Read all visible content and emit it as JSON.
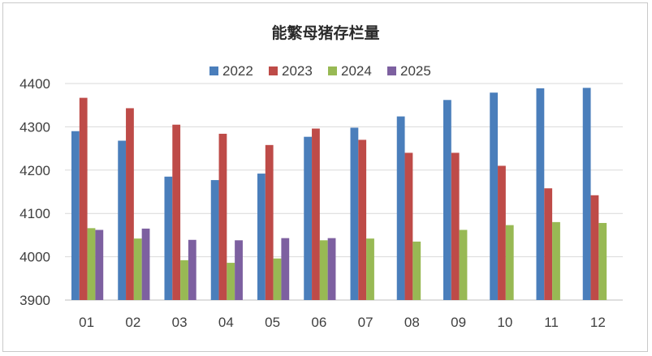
{
  "chart_data": {
    "type": "bar",
    "title": "能繁母猪存栏量",
    "xlabel": "",
    "ylabel": "",
    "categories": [
      "01",
      "02",
      "03",
      "04",
      "05",
      "06",
      "07",
      "08",
      "09",
      "10",
      "11",
      "12"
    ],
    "ylim": [
      3900,
      4400
    ],
    "yticks": [
      "3900",
      "4000",
      "4100",
      "4200",
      "4300",
      "4400"
    ],
    "grid": "horizontal",
    "legend_position": "top",
    "series": [
      {
        "name": "2022",
        "color": "#4a7ebb",
        "values": [
          4290,
          4268,
          4185,
          4177,
          4192,
          4277,
          4298,
          4324,
          4362,
          4379,
          4389,
          4390
        ]
      },
      {
        "name": "2023",
        "color": "#be4b48",
        "values": [
          4367,
          4343,
          4305,
          4284,
          4258,
          4296,
          4270,
          4240,
          4240,
          4210,
          4158,
          4142
        ]
      },
      {
        "name": "2024",
        "color": "#98b954",
        "values": [
          4066,
          4042,
          3992,
          3986,
          3996,
          4038,
          4042,
          4035,
          4062,
          4073,
          4080,
          4078
        ]
      },
      {
        "name": "2025",
        "color": "#7d60a0",
        "values": [
          4062,
          4065,
          4039,
          4038,
          4043,
          4043,
          null,
          null,
          null,
          null,
          null,
          null
        ]
      }
    ]
  }
}
